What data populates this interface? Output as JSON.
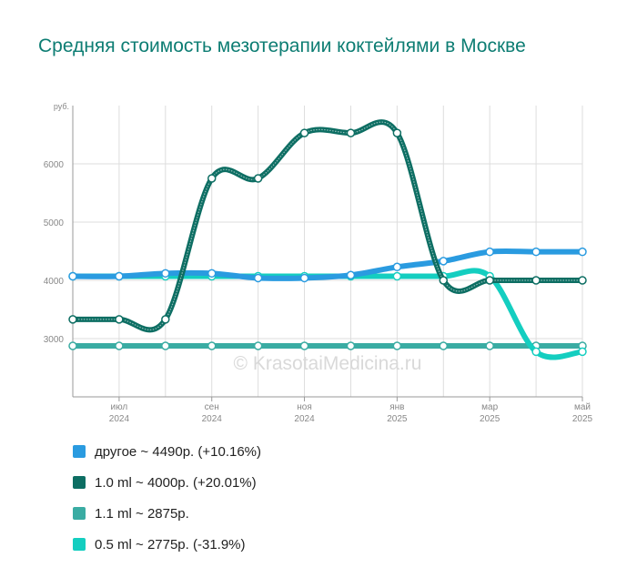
{
  "chart_data": {
    "type": "line",
    "title": "Средняя стоимость мезотерапии коктейлями в Москве",
    "y_unit_label": "руб.",
    "y_ticks": [
      3000,
      4000,
      5000,
      6000
    ],
    "ylim": [
      2000,
      7000
    ],
    "x_tick_labels": [
      {
        "month": "июл",
        "year": "2024"
      },
      {
        "month": "сен",
        "year": "2024"
      },
      {
        "month": "ноя",
        "year": "2024"
      },
      {
        "month": "янв",
        "year": "2025"
      },
      {
        "month": "мар",
        "year": "2025"
      },
      {
        "month": "май",
        "year": "2025"
      }
    ],
    "x": [
      "2024-06",
      "2024-07",
      "2024-08",
      "2024-09",
      "2024-10",
      "2024-11",
      "2024-12",
      "2025-01",
      "2025-02",
      "2025-03",
      "2025-04",
      "2025-05"
    ],
    "series": [
      {
        "name": "другое",
        "color": "#2a9be0",
        "values": [
          4070,
          4070,
          4120,
          4120,
          4040,
          4040,
          4090,
          4230,
          4330,
          4490,
          4490,
          4490
        ]
      },
      {
        "name": "1.0 ml",
        "color": "#0d6e63",
        "values": [
          3330,
          3330,
          3330,
          5750,
          5750,
          6530,
          6530,
          6530,
          4000,
          4000,
          4000,
          4000
        ]
      },
      {
        "name": "1.1 ml",
        "color": "#3aaca3",
        "values": [
          2875,
          2875,
          2875,
          2875,
          2875,
          2875,
          2875,
          2875,
          2875,
          2875,
          2875,
          2875
        ]
      },
      {
        "name": "0.5 ml",
        "color": "#14cec0",
        "values": [
          4070,
          4070,
          4070,
          4070,
          4070,
          4070,
          4070,
          4070,
          4070,
          4070,
          2775,
          2775
        ]
      }
    ],
    "grid": true,
    "legend_position": "bottom-left",
    "watermark": "© KrasotaiMedicina.ru"
  },
  "legend": [
    {
      "label": "другое ~ 4490р. (+10.16%)",
      "color": "#2a9be0"
    },
    {
      "label": "1.0 ml ~ 4000р. (+20.01%)",
      "color": "#0d6e63"
    },
    {
      "label": "1.1 ml ~ 2875р.",
      "color": "#3aaca3"
    },
    {
      "label": "0.5 ml ~ 2775р. (-31.9%)",
      "color": "#14cec0"
    }
  ]
}
